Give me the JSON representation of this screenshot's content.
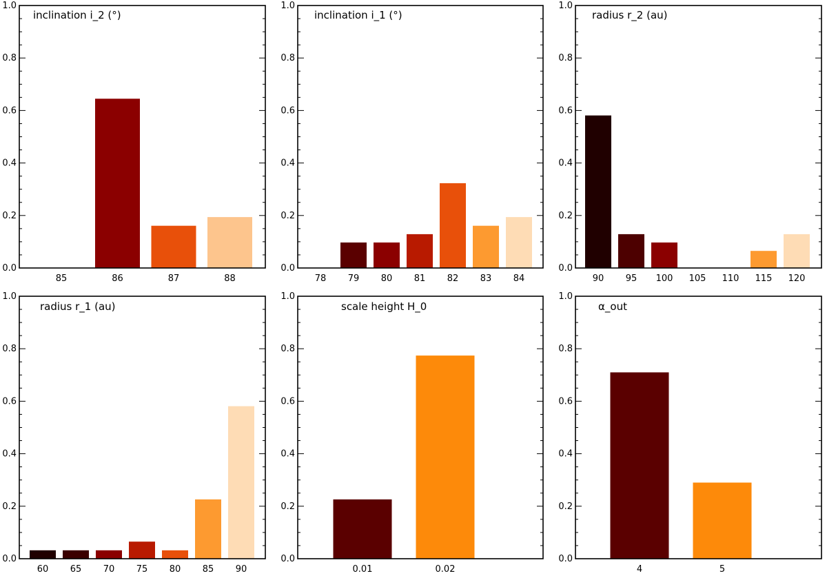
{
  "chart_data": [
    {
      "type": "bar",
      "title": "inclination i_2 (°)",
      "categories": [
        "85",
        "86",
        "87",
        "88"
      ],
      "values": [
        0.0,
        0.645,
        0.161,
        0.194
      ],
      "colors": [
        "#8b0000",
        "#8b0000",
        "#e8500a",
        "#fdc58d"
      ],
      "ylim": [
        0,
        1
      ],
      "yticks": [
        "0.0",
        "0.2",
        "0.4",
        "0.6",
        "0.8",
        "1.0"
      ]
    },
    {
      "type": "bar",
      "title": "inclination i_1 (°)",
      "categories": [
        "78",
        "79",
        "80",
        "81",
        "82",
        "83",
        "84"
      ],
      "values": [
        0.0,
        0.097,
        0.097,
        0.129,
        0.323,
        0.161,
        0.194
      ],
      "colors": [
        "#3b0000",
        "#5a0000",
        "#8b0000",
        "#b81a00",
        "#e8500a",
        "#fd9a30",
        "#fedcb5"
      ],
      "ylim": [
        0,
        1
      ],
      "yticks": [
        "0.0",
        "0.2",
        "0.4",
        "0.6",
        "0.8",
        "1.0"
      ]
    },
    {
      "type": "bar",
      "title": "radius r_2 (au)",
      "categories": [
        "90",
        "95",
        "100",
        "105",
        "110",
        "115",
        "120"
      ],
      "values": [
        0.581,
        0.129,
        0.097,
        0.0,
        0.0,
        0.065,
        0.129
      ],
      "colors": [
        "#200000",
        "#4d0000",
        "#8b0000",
        "#b81a00",
        "#e8500a",
        "#fd9a30",
        "#fedcb5"
      ],
      "ylim": [
        0,
        1
      ],
      "yticks": [
        "0.0",
        "0.2",
        "0.4",
        "0.6",
        "0.8",
        "1.0"
      ]
    },
    {
      "type": "bar",
      "title": "radius r_1 (au)",
      "categories": [
        "60",
        "65",
        "70",
        "75",
        "80",
        "85",
        "90"
      ],
      "values": [
        0.032,
        0.032,
        0.032,
        0.065,
        0.032,
        0.226,
        0.581
      ],
      "colors": [
        "#200000",
        "#3b0000",
        "#8b0000",
        "#b81a00",
        "#e8500a",
        "#fd9a30",
        "#fedcb5"
      ],
      "ylim": [
        0,
        1
      ],
      "yticks": [
        "0.0",
        "0.2",
        "0.4",
        "0.6",
        "0.8",
        "1.0"
      ]
    },
    {
      "type": "bar",
      "title": "scale height H_0",
      "categories": [
        "0.01",
        "0.02"
      ],
      "values": [
        0.226,
        0.774
      ],
      "colors": [
        "#5a0000",
        "#fd8a0a"
      ],
      "ylim": [
        0,
        1
      ],
      "yticks": [
        "0.0",
        "0.2",
        "0.4",
        "0.6",
        "0.8",
        "1.0"
      ]
    },
    {
      "type": "bar",
      "title": "α_out",
      "categories": [
        "4",
        "5"
      ],
      "values": [
        0.71,
        0.29
      ],
      "colors": [
        "#5a0000",
        "#fd8a0a"
      ],
      "ylim": [
        0,
        1
      ],
      "yticks": [
        "0.0",
        "0.2",
        "0.4",
        "0.6",
        "0.8",
        "1.0"
      ]
    }
  ]
}
